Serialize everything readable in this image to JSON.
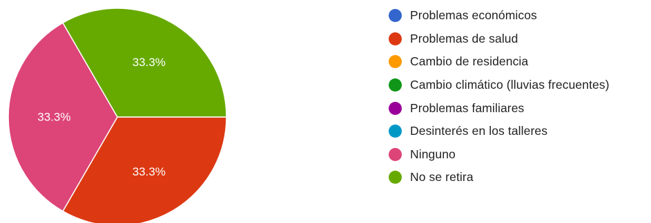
{
  "chart_data": {
    "type": "pie",
    "title": "",
    "legend_position": "right",
    "categories": [
      "Problemas económicos",
      "Problemas de salud",
      "Cambio de residencia",
      "Cambio climático (lluvias frecuentes)",
      "Problemas familiares",
      "Desinterés en los talleres",
      "Ninguno",
      "No se retira"
    ],
    "colors": [
      "#3366cc",
      "#dc3912",
      "#ff9900",
      "#109618",
      "#990099",
      "#0099c6",
      "#dd4477",
      "#66aa00"
    ],
    "values": [
      0,
      33.3,
      0,
      0,
      0,
      0,
      33.3,
      33.3
    ],
    "value_labels": [
      "",
      "33.3%",
      "",
      "",
      "",
      "",
      "33.3%",
      "33.3%"
    ]
  }
}
